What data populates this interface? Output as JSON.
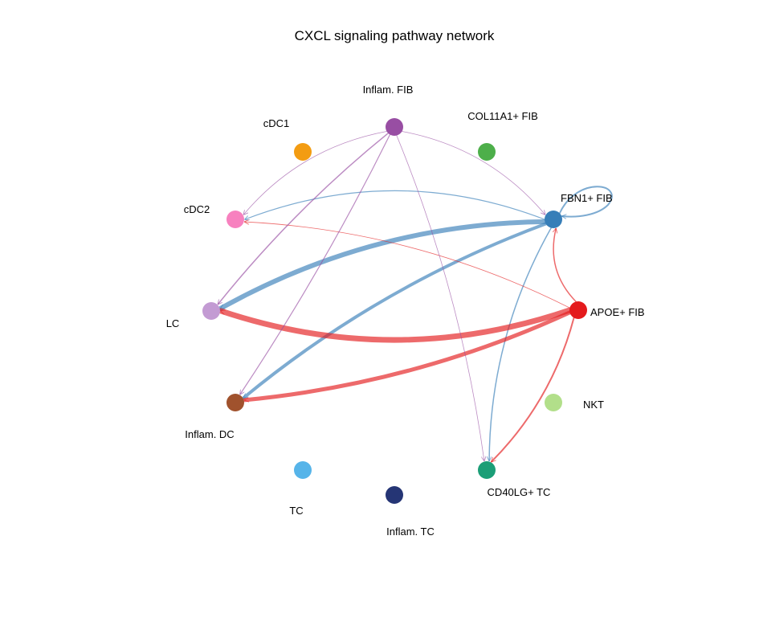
{
  "title": "CXCL signaling pathway network",
  "nodes": [
    {
      "id": "inflam_fib",
      "label": "Inflam. FIB",
      "color": "#984EA3"
    },
    {
      "id": "col11a1_fib",
      "label": "COL11A1+ FIB",
      "color": "#4DAF4A"
    },
    {
      "id": "fbn1_fib",
      "label": "FBN1+ FIB",
      "color": "#377EB8"
    },
    {
      "id": "apoe_fib",
      "label": "APOE+ FIB",
      "color": "#E41A1C"
    },
    {
      "id": "nkt",
      "label": "NKT",
      "color": "#B2DF8A"
    },
    {
      "id": "cd40lg_tc",
      "label": "CD40LG+ TC",
      "color": "#1B9E77"
    },
    {
      "id": "inflam_tc",
      "label": "Inflam. TC",
      "color": "#253575"
    },
    {
      "id": "tc",
      "label": "TC",
      "color": "#56B4E9"
    },
    {
      "id": "inflam_dc",
      "label": "Inflam. DC",
      "color": "#A0522D"
    },
    {
      "id": "lc",
      "label": "LC",
      "color": "#C39BD3"
    },
    {
      "id": "cdc2",
      "label": "cDC2",
      "color": "#F781BF"
    },
    {
      "id": "cdc1",
      "label": "cDC1",
      "color": "#F39C12"
    }
  ],
  "edges": [
    {
      "from": "fbn1_fib",
      "to": "fbn1_fib",
      "weight": 2
    },
    {
      "from": "fbn1_fib",
      "to": "lc",
      "weight": 6
    },
    {
      "from": "fbn1_fib",
      "to": "inflam_dc",
      "weight": 4
    },
    {
      "from": "fbn1_fib",
      "to": "cdc2",
      "weight": 1.2
    },
    {
      "from": "fbn1_fib",
      "to": "cd40lg_tc",
      "weight": 1.5
    },
    {
      "from": "apoe_fib",
      "to": "lc",
      "weight": 7
    },
    {
      "from": "apoe_fib",
      "to": "inflam_dc",
      "weight": 5
    },
    {
      "from": "apoe_fib",
      "to": "cdc2",
      "weight": 0.8
    },
    {
      "from": "apoe_fib",
      "to": "cd40lg_tc",
      "weight": 2
    },
    {
      "from": "apoe_fib",
      "to": "fbn1_fib",
      "weight": 1.5
    },
    {
      "from": "inflam_fib",
      "to": "cdc2",
      "weight": 0.8
    },
    {
      "from": "inflam_fib",
      "to": "lc",
      "weight": 1.5
    },
    {
      "from": "inflam_fib",
      "to": "inflam_dc",
      "weight": 1.2
    },
    {
      "from": "inflam_fib",
      "to": "fbn1_fib",
      "weight": 0.8
    },
    {
      "from": "inflam_fib",
      "to": "cd40lg_tc",
      "weight": 0.8
    }
  ]
}
